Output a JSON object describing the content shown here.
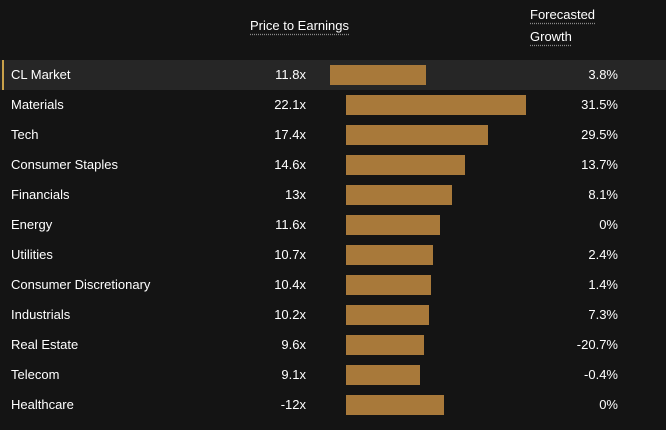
{
  "header": {
    "pe_label": "Price to Earnings",
    "growth_label_line1": "Forecasted",
    "growth_label_line2": "Growth"
  },
  "colors": {
    "background": "#141414",
    "bar": "#a8793a",
    "highlight_row": "#262626",
    "highlight_accent": "#c9a14a"
  },
  "chart_data": {
    "type": "bar",
    "orientation": "horizontal",
    "title": "",
    "xlabel": "Price to Earnings",
    "ylabel": "",
    "rows": [
      {
        "sector": "CL Market",
        "pe": 11.8,
        "pe_label": "11.8x",
        "growth": "3.8%",
        "highlight": true
      },
      {
        "sector": "Materials",
        "pe": 22.1,
        "pe_label": "22.1x",
        "growth": "31.5%"
      },
      {
        "sector": "Tech",
        "pe": 17.4,
        "pe_label": "17.4x",
        "growth": "29.5%"
      },
      {
        "sector": "Consumer Staples",
        "pe": 14.6,
        "pe_label": "14.6x",
        "growth": "13.7%"
      },
      {
        "sector": "Financials",
        "pe": 13,
        "pe_label": "13x",
        "growth": "8.1%"
      },
      {
        "sector": "Energy",
        "pe": 11.6,
        "pe_label": "11.6x",
        "growth": "0%"
      },
      {
        "sector": "Utilities",
        "pe": 10.7,
        "pe_label": "10.7x",
        "growth": "2.4%"
      },
      {
        "sector": "Consumer Discretionary",
        "pe": 10.4,
        "pe_label": "10.4x",
        "growth": "1.4%"
      },
      {
        "sector": "Industrials",
        "pe": 10.2,
        "pe_label": "10.2x",
        "growth": "7.3%"
      },
      {
        "sector": "Real Estate",
        "pe": 9.6,
        "pe_label": "9.6x",
        "growth": "-20.7%"
      },
      {
        "sector": "Telecom",
        "pe": 9.1,
        "pe_label": "9.1x",
        "growth": "-0.4%"
      },
      {
        "sector": "Healthcare",
        "pe": -12,
        "pe_label": "-12x",
        "growth": "0%"
      }
    ]
  }
}
